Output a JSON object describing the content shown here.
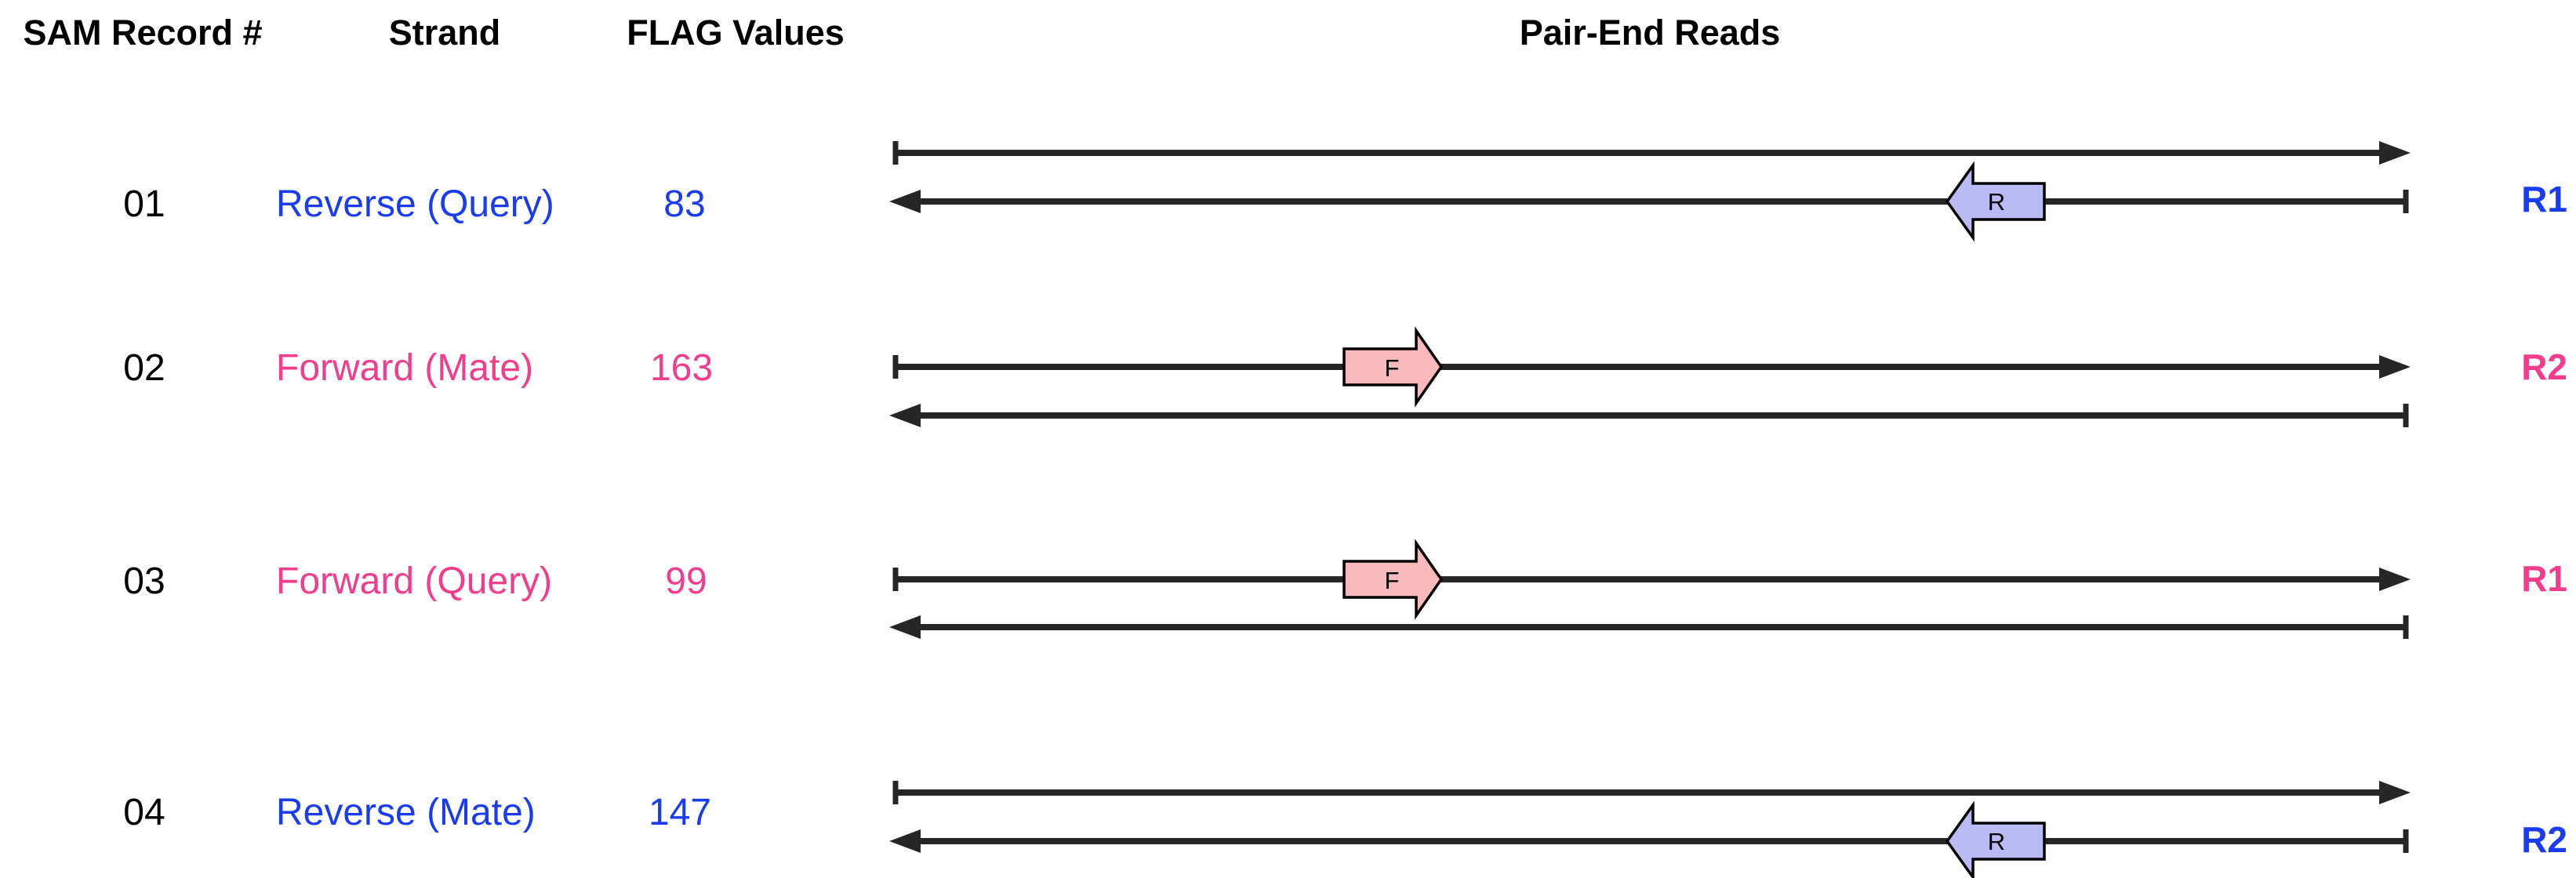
{
  "headers": {
    "record": "SAM Record #",
    "strand": "Strand",
    "flag": "FLAG Values",
    "reads": "Pair-End Reads"
  },
  "colors": {
    "blue": "#1a3cf0",
    "pink": "#f23d8c",
    "line": "#262626",
    "forward_fill": "#f7b9b9",
    "reverse_fill": "#babaf5"
  },
  "rows": [
    {
      "record": "01",
      "strand": "Reverse (Query)",
      "flag": "83",
      "read_tag": "R1",
      "color": "#1a3cf0",
      "box_label": "R",
      "box_direction": "reverse"
    },
    {
      "record": "02",
      "strand": "Forward (Mate)",
      "flag": "163",
      "read_tag": "R2",
      "color": "#f23d8c",
      "box_label": "F",
      "box_direction": "forward"
    },
    {
      "record": "03",
      "strand": "Forward (Query)",
      "flag": "99",
      "read_tag": "R1",
      "color": "#f23d8c",
      "box_label": "F",
      "box_direction": "forward"
    },
    {
      "record": "04",
      "strand": "Reverse (Mate)",
      "flag": "147",
      "read_tag": "R2",
      "color": "#1a3cf0",
      "box_label": "R",
      "box_direction": "reverse"
    }
  ]
}
